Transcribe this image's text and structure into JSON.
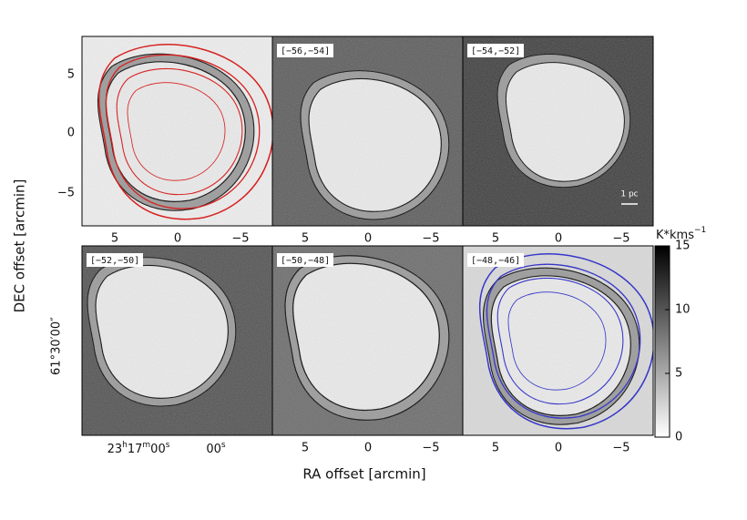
{
  "panels": {
    "labels": [
      "[−56,−54]",
      "[−54,−52]",
      "[−52,−50]",
      "[−50,−48]",
      "[−48,−46]"
    ],
    "scale_bar": "1 pc"
  },
  "axes": {
    "x_ticks": [
      "5",
      "0",
      "−5"
    ],
    "y_ticks": [
      "5",
      "0",
      "−5"
    ],
    "x_label": "RA offset [arcmin]",
    "y_label": "DEC offset [arcmin]",
    "ra_ticks": [
      [
        "23",
        "h",
        "17",
        "m",
        "00",
        "s"
      ],
      [
        "00",
        "s"
      ]
    ],
    "dec_tick": "61°30′00″"
  },
  "colorbar": {
    "unit": "K*kms",
    "unit_exp": "−1",
    "lim": [
      0,
      15
    ],
    "ticks": [
      0,
      5,
      10,
      15
    ]
  }
}
